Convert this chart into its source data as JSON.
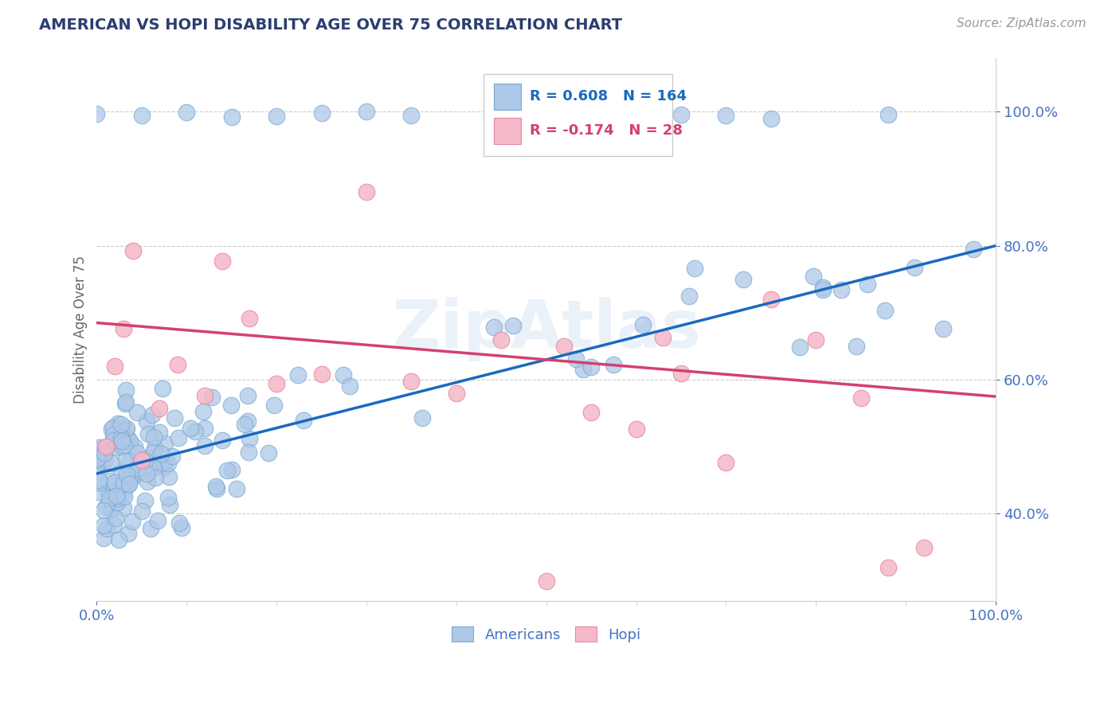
{
  "title": "AMERICAN VS HOPI DISABILITY AGE OVER 75 CORRELATION CHART",
  "source_text": "Source: ZipAtlas.com",
  "ylabel": "Disability Age Over 75",
  "xlim": [
    0.0,
    1.0
  ],
  "ylim": [
    0.27,
    1.08
  ],
  "r_american": 0.608,
  "n_american": 164,
  "r_hopi": -0.174,
  "n_hopi": 28,
  "american_color": "#adc8e8",
  "american_edge_color": "#7aaad0",
  "hopi_color": "#f5b8c8",
  "hopi_edge_color": "#e888a0",
  "american_line_color": "#1a6abf",
  "hopi_line_color": "#d44070",
  "title_color": "#2c3e70",
  "tick_color": "#4472c4",
  "watermark": "ZipAtlas",
  "yticks": [
    0.4,
    0.6,
    0.8,
    1.0
  ],
  "ytick_labels": [
    "40.0%",
    "60.0%",
    "80.0%",
    "100.0%"
  ],
  "xtick_labels": [
    "0.0%",
    "100.0%"
  ],
  "am_line_x0": 0.0,
  "am_line_y0": 0.46,
  "am_line_x1": 1.0,
  "am_line_y1": 0.8,
  "hopi_line_x0": 0.0,
  "hopi_line_y0": 0.685,
  "hopi_line_x1": 1.0,
  "hopi_line_y1": 0.575,
  "background_color": "#ffffff",
  "grid_color": "#c8c8c8",
  "legend_r_color": "#1a6abf",
  "legend_n_color": "#e88000"
}
